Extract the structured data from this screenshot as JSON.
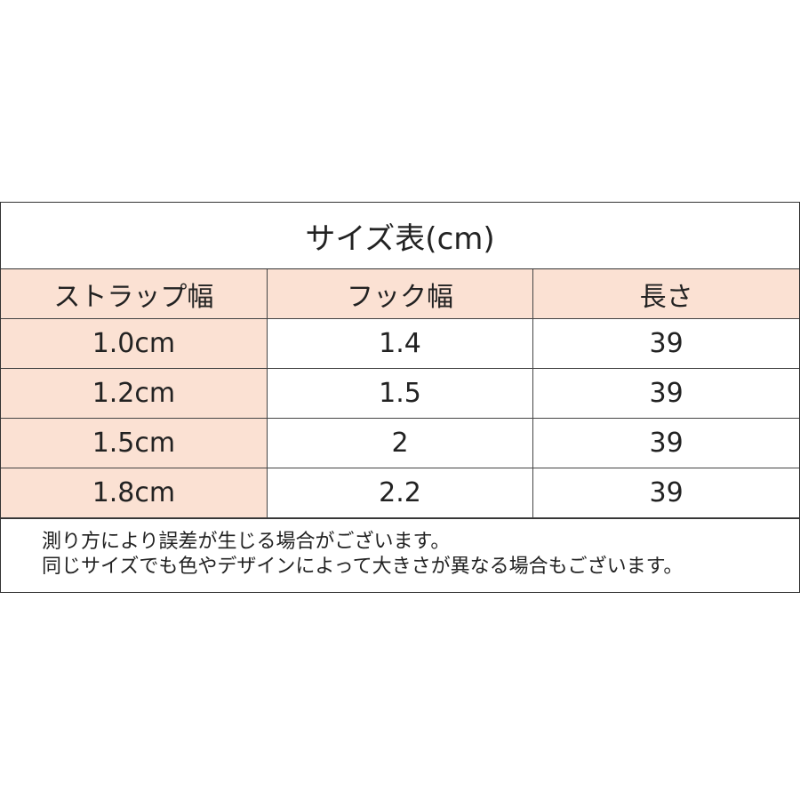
{
  "title": "サイズ表(cm)",
  "headers": [
    "ストラップ幅",
    "フック幅",
    "長さ"
  ],
  "rows": [
    [
      "1.0cm",
      "1.4",
      "39"
    ],
    [
      "1.2cm",
      "1.5",
      "39"
    ],
    [
      "1.5cm",
      "2",
      "39"
    ],
    [
      "1.8cm",
      "2.2",
      "39"
    ]
  ],
  "notes": [
    "測り方により誤差が生じる場合がございます。",
    "同じサイズでも色やデザインによって大きさが異なる場合もございます。"
  ],
  "colors": {
    "header_bg": "#fbe1d3",
    "border": "#333333"
  }
}
